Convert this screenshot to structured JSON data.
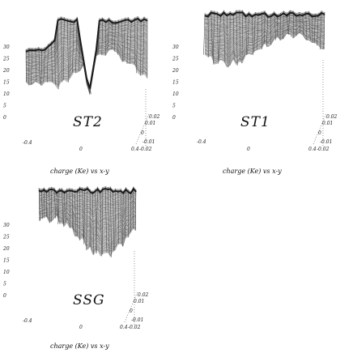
{
  "chart_data": [
    {
      "type": "surface",
      "label": "ST2",
      "caption": "charge (Ke) vs x-y",
      "zticks": [
        "30",
        "25",
        "20",
        "15",
        "10",
        "5",
        "0"
      ],
      "xticks": [
        "-0.4",
        "0"
      ],
      "yticks": [
        "0.02",
        "0.01",
        "0",
        "-0.01",
        "-0.02"
      ],
      "corner_label": "0.4"
    },
    {
      "type": "surface",
      "label": "ST1",
      "caption": "charge (Ke) vs x-y",
      "zticks": [
        "30",
        "25",
        "20",
        "15",
        "10",
        "5",
        "0"
      ],
      "xticks": [
        "-0.4",
        "0"
      ],
      "yticks": [
        "0.02",
        "0.01",
        "0",
        "-0.01",
        "-0.02"
      ],
      "corner_label": "0.4"
    },
    {
      "type": "surface",
      "label": "SSG",
      "caption": "charge (Ke) vs x-y",
      "zticks": [
        "30",
        "25",
        "20",
        "15",
        "10",
        "5",
        "0"
      ],
      "xticks": [
        "-0.4",
        "0"
      ],
      "yticks": [
        "0.02",
        "0.01",
        "0",
        "-0.01",
        "-0.02"
      ],
      "corner_label": "0.4"
    }
  ]
}
